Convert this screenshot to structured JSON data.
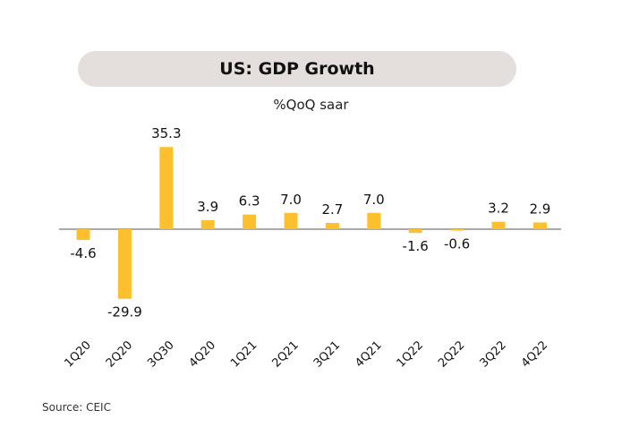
{
  "header": {
    "title": "US: GDP Growth",
    "subtitle": "%QoQ saar"
  },
  "footer": {
    "source": "Source: CEIC"
  },
  "colors": {
    "bar": "#fcc02e",
    "baseline": "#555555",
    "title_bg": "#e4dedc"
  },
  "chart_data": {
    "type": "bar",
    "title": "US: GDP Growth",
    "subtitle": "%QoQ saar",
    "categories": [
      "1Q20",
      "2Q20",
      "3Q30",
      "4Q20",
      "1Q21",
      "2Q21",
      "3Q21",
      "4Q21",
      "1Q22",
      "2Q22",
      "3Q22",
      "4Q22"
    ],
    "values": [
      -4.6,
      -29.9,
      35.3,
      3.9,
      6.3,
      7.0,
      2.7,
      7.0,
      -1.6,
      -0.6,
      3.2,
      2.9
    ],
    "data_labels": [
      "-4.6",
      "-29.9",
      "35.3",
      "3.9",
      "6.3",
      "7.0",
      "2.7",
      "7.0",
      "-1.6",
      "-0.6",
      "3.2",
      "2.9"
    ],
    "xlabel": "",
    "ylabel": "",
    "grid": false,
    "legend": "none",
    "source": "Source: CEIC"
  }
}
